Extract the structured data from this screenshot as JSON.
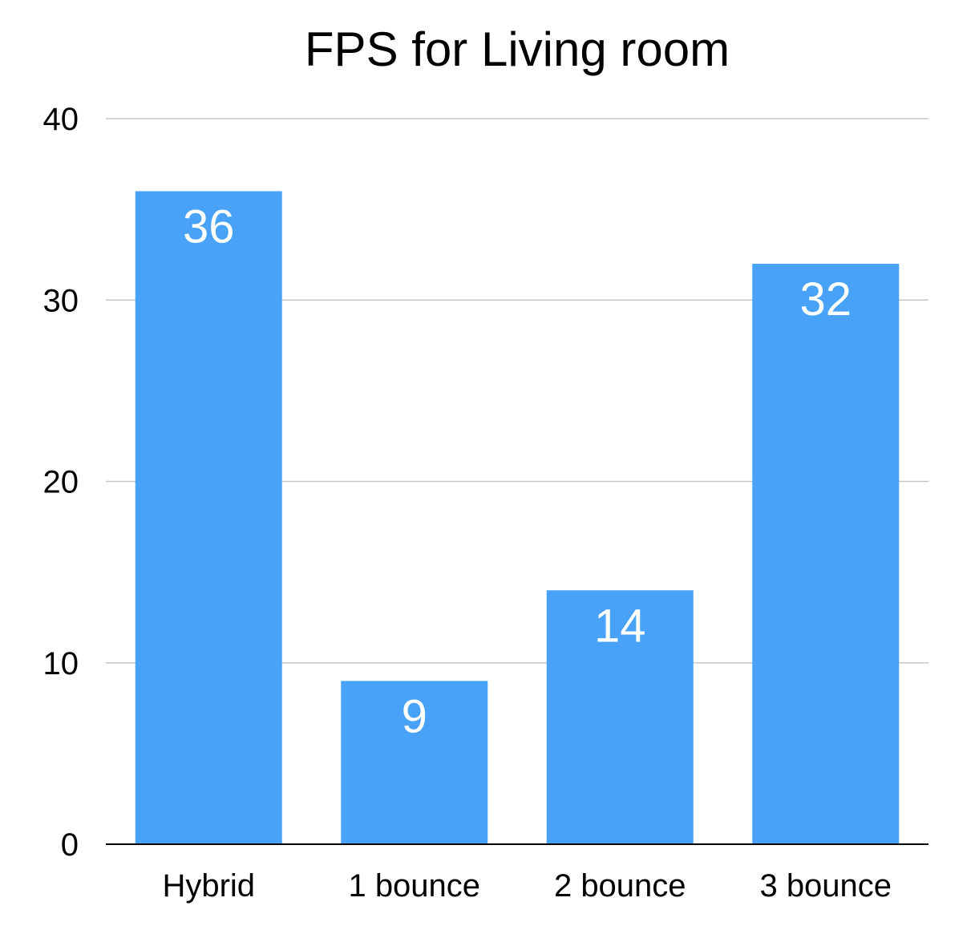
{
  "chart_data": {
    "type": "bar",
    "title": "FPS for Living room",
    "xlabel": "",
    "ylabel": "",
    "categories": [
      "Hybrid",
      "1 bounce",
      "2 bounce",
      "3 bounce"
    ],
    "values": [
      36,
      9,
      14,
      32
    ],
    "data_labels": [
      "36",
      "9",
      "14",
      "32"
    ],
    "ylim": [
      0,
      40
    ],
    "yticks": [
      0,
      10,
      20,
      30,
      40
    ],
    "ytick_labels": [
      "0",
      "10",
      "20",
      "30",
      "40"
    ],
    "grid": true,
    "legend": "none",
    "colors": {
      "bar": "#47a2f8",
      "grid": "#c6c6c6",
      "axis": "#000000",
      "label": "#ffffff"
    }
  }
}
